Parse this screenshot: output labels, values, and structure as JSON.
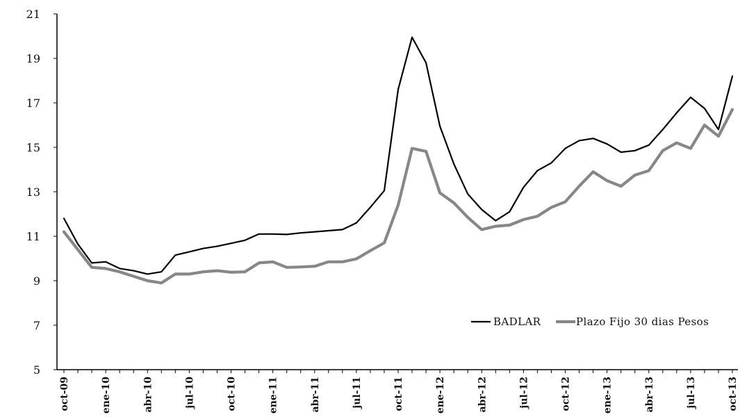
{
  "chart_data": {
    "type": "line",
    "x_months": [
      "oct-09",
      "nov-09",
      "dic-09",
      "ene-10",
      "feb-10",
      "mar-10",
      "abr-10",
      "may-10",
      "jun-10",
      "jul-10",
      "ago-10",
      "sep-10",
      "oct-10",
      "nov-10",
      "dic-10",
      "ene-11",
      "feb-11",
      "mar-11",
      "abr-11",
      "may-11",
      "jun-11",
      "jul-11",
      "ago-11",
      "sep-11",
      "oct-11",
      "nov-11",
      "dic-11",
      "ene-12",
      "feb-12",
      "mar-12",
      "abr-12",
      "may-12",
      "jun-12",
      "jul-12",
      "ago-12",
      "sep-12",
      "oct-12",
      "nov-12",
      "dic-12",
      "ene-13",
      "feb-13",
      "mar-13",
      "abr-13",
      "may-13",
      "jun-13",
      "jul-13",
      "ago-13",
      "sep-13",
      "oct-13"
    ],
    "x_tick_labels": [
      "oct-09",
      "ene-10",
      "abr-10",
      "jul-10",
      "oct-10",
      "ene-11",
      "abr-11",
      "jul-11",
      "oct-11",
      "ene-12",
      "abr-12",
      "jul-12",
      "oct-12",
      "ene-13",
      "abr-13",
      "jul-13",
      "oct-13"
    ],
    "y_ticks": [
      5,
      7,
      9,
      11,
      13,
      15,
      17,
      19,
      21
    ],
    "ylim": [
      5,
      21
    ],
    "grid": false,
    "legend_position": "bottom-right",
    "series": [
      {
        "name": "BADLAR",
        "color": "#000000",
        "values": [
          11.8,
          10.65,
          9.8,
          9.85,
          9.55,
          9.45,
          9.3,
          9.4,
          10.15,
          10.3,
          10.45,
          10.55,
          10.68,
          10.82,
          11.1,
          11.1,
          11.08,
          11.15,
          11.2,
          11.25,
          11.3,
          11.6,
          12.3,
          13.05,
          17.6,
          19.95,
          18.8,
          15.95,
          14.25,
          12.9,
          12.2,
          11.7,
          12.1,
          13.2,
          13.95,
          14.3,
          14.95,
          15.3,
          15.4,
          15.15,
          14.78,
          14.85,
          15.1,
          15.8,
          16.55,
          17.25,
          16.75,
          15.8,
          18.2
        ]
      },
      {
        "name": "Plazo Fijo 30 dias Pesos",
        "color": "#878787",
        "values": [
          11.2,
          10.4,
          9.6,
          9.55,
          9.4,
          9.2,
          9.0,
          8.9,
          9.3,
          9.3,
          9.4,
          9.45,
          9.38,
          9.4,
          9.8,
          9.85,
          9.6,
          9.62,
          9.65,
          9.85,
          9.85,
          9.98,
          10.35,
          10.7,
          12.4,
          14.95,
          14.82,
          12.95,
          12.5,
          11.85,
          11.3,
          11.45,
          11.5,
          11.75,
          11.9,
          12.3,
          12.55,
          13.25,
          13.9,
          13.5,
          13.25,
          13.75,
          13.95,
          14.85,
          15.2,
          14.95,
          16.0,
          15.5,
          16.7
        ]
      }
    ]
  }
}
